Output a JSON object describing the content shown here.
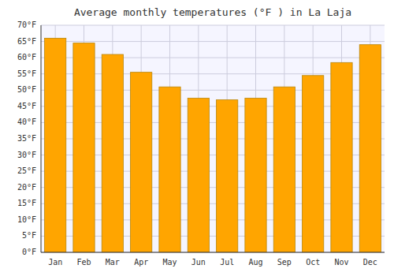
{
  "chart_data": {
    "type": "bar",
    "title": "Average monthly temperatures (°F ) in La Laja",
    "categories": [
      "Jan",
      "Feb",
      "Mar",
      "Apr",
      "May",
      "Jun",
      "Jul",
      "Aug",
      "Sep",
      "Oct",
      "Nov",
      "Dec"
    ],
    "values": [
      66,
      64.5,
      61,
      55.5,
      51,
      47.5,
      47,
      47.5,
      51,
      54.5,
      58.5,
      64
    ],
    "color": "#FFA500",
    "ylim": [
      0,
      70
    ],
    "yticks": [
      {
        "value": 0,
        "label": "0°F"
      },
      {
        "value": 5,
        "label": "5°F"
      },
      {
        "value": 10,
        "label": "10°F"
      },
      {
        "value": 15,
        "label": "15°F"
      },
      {
        "value": 20,
        "label": "20°F"
      },
      {
        "value": 25,
        "label": "25°F"
      },
      {
        "value": 30,
        "label": "30°F"
      },
      {
        "value": 35,
        "label": "35°F"
      },
      {
        "value": 40,
        "label": "40°F"
      },
      {
        "value": 45,
        "label": "45°F"
      },
      {
        "value": 50,
        "label": "50°F"
      },
      {
        "value": 55,
        "label": "55°F"
      },
      {
        "value": 60,
        "label": "60°F"
      },
      {
        "value": 65,
        "label": "65°F"
      },
      {
        "value": 70,
        "label": "70°F"
      }
    ],
    "grid": true
  }
}
